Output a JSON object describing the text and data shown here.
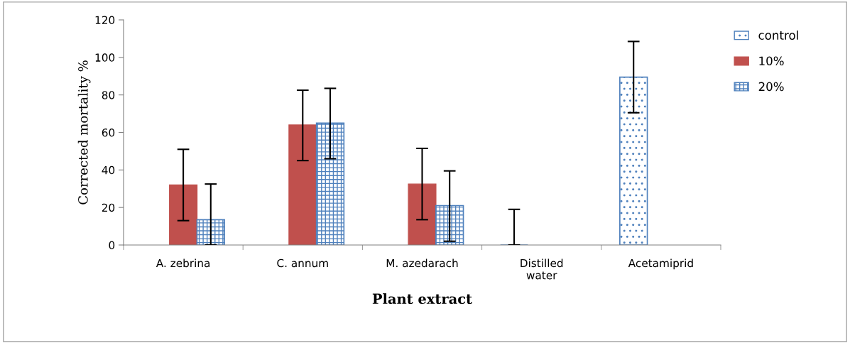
{
  "chart_data": {
    "type": "bar",
    "xlabel": "Plant extract",
    "ylabel": "Corrected mortality %",
    "categories": [
      "A. zebrina",
      "C. annum",
      "M. azedarach",
      "Distilled\nwater",
      "Acetamiprid"
    ],
    "series": [
      {
        "name": "control",
        "color": "#4f81bd",
        "values": [
          null,
          null,
          null,
          0,
          89.5
        ],
        "errors": [
          null,
          null,
          null,
          [
            0,
            19
          ],
          [
            70.5,
            108.5
          ]
        ]
      },
      {
        "name": "10%",
        "color": "#c0504d",
        "values": [
          32,
          64,
          32.5,
          null,
          null
        ],
        "errors": [
          [
            13,
            51
          ],
          [
            45,
            82.5
          ],
          [
            13.5,
            51.5
          ],
          null,
          null
        ]
      },
      {
        "name": "20%",
        "color": "#4f81bd",
        "values": [
          13.5,
          65,
          21,
          null,
          null
        ],
        "errors": [
          [
            0,
            32.5
          ],
          [
            46,
            83.5
          ],
          [
            2,
            39.5
          ],
          null,
          null
        ]
      }
    ],
    "ylim": [
      0,
      120
    ],
    "yticks": [
      0,
      20,
      40,
      60,
      80,
      100,
      120
    ],
    "grid": false,
    "legend": "top right"
  }
}
